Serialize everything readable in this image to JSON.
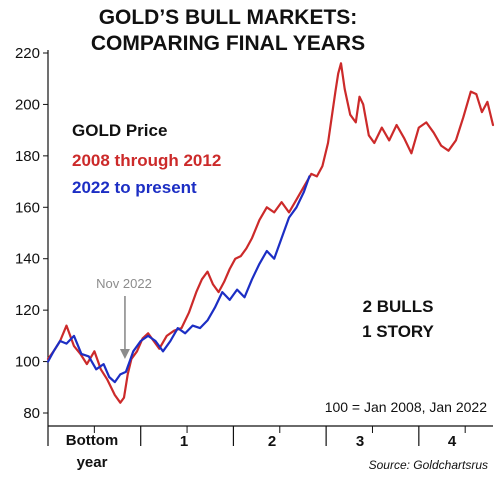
{
  "chart_data": {
    "type": "line",
    "title": [
      "GOLD’S BULL MARKETS:",
      "COMPARING FINAL YEARS"
    ],
    "ylim": [
      80,
      220
    ],
    "yticks": [
      80,
      100,
      120,
      140,
      160,
      180,
      200,
      220
    ],
    "x_unit": "years from bottom",
    "xlim": [
      0,
      4.8
    ],
    "period_labels": [
      "Bottom",
      "year",
      "1",
      "2",
      "3",
      "4"
    ],
    "legend": {
      "heading": "GOLD Price",
      "entries": [
        "2008 through 2012",
        "2022 to present"
      ]
    },
    "series": [
      {
        "name": "2008 through 2012",
        "color": "#cc2a2a",
        "x": [
          0,
          0.06,
          0.13,
          0.2,
          0.28,
          0.35,
          0.42,
          0.5,
          0.57,
          0.64,
          0.72,
          0.78,
          0.82,
          0.86,
          0.9,
          0.96,
          1.02,
          1.08,
          1.14,
          1.2,
          1.28,
          1.36,
          1.44,
          1.52,
          1.6,
          1.66,
          1.72,
          1.78,
          1.84,
          1.9,
          1.96,
          2.02,
          2.08,
          2.14,
          2.2,
          2.28,
          2.36,
          2.44,
          2.52,
          2.6,
          2.68,
          2.76,
          2.84,
          2.9,
          2.96,
          3.02,
          3.06,
          3.1,
          3.13,
          3.16,
          3.2,
          3.26,
          3.32,
          3.36,
          3.4,
          3.46,
          3.52,
          3.6,
          3.68,
          3.76,
          3.84,
          3.92,
          4.0,
          4.08,
          4.16,
          4.24,
          4.32,
          4.4,
          4.48,
          4.56,
          4.62,
          4.68,
          4.74,
          4.8
        ],
        "y": [
          101,
          104,
          108,
          114,
          106,
          103,
          99,
          104,
          97,
          93,
          87,
          84,
          86,
          95,
          101,
          104,
          109,
          111,
          108,
          105,
          110,
          112,
          113,
          119,
          127,
          132,
          135,
          130,
          127,
          131,
          136,
          140,
          141,
          144,
          148,
          155,
          160,
          158,
          162,
          158,
          163,
          168,
          173,
          172,
          176,
          185,
          195,
          205,
          212,
          216,
          206,
          196,
          193,
          203,
          200,
          188,
          185,
          191,
          186,
          192,
          187,
          181,
          191,
          193,
          189,
          184,
          182,
          186,
          195,
          205,
          204,
          197,
          201,
          192
        ]
      },
      {
        "name": "2022 to present",
        "color": "#1c2ec4",
        "x": [
          0,
          0.06,
          0.13,
          0.2,
          0.28,
          0.36,
          0.44,
          0.52,
          0.6,
          0.66,
          0.72,
          0.78,
          0.84,
          0.92,
          1.0,
          1.08,
          1.16,
          1.24,
          1.32,
          1.4,
          1.48,
          1.56,
          1.64,
          1.72,
          1.8,
          1.88,
          1.96,
          2.04,
          2.12,
          2.2,
          2.28,
          2.36,
          2.44,
          2.52,
          2.6,
          2.68,
          2.76,
          2.82
        ],
        "y": [
          100,
          104,
          108,
          107,
          110,
          103,
          102,
          97,
          99,
          94,
          92,
          95,
          96,
          104,
          108,
          110,
          108,
          104,
          108,
          113,
          111,
          114,
          113,
          116,
          121,
          127,
          124,
          128,
          125,
          132,
          138,
          143,
          140,
          148,
          156,
          160,
          166,
          172
        ]
      }
    ],
    "callout": {
      "text": "Nov 2022",
      "x": 0.83,
      "y": 101
    },
    "annotation": [
      "2 BULLS",
      "1 STORY"
    ],
    "note": "100 = Jan 2008, Jan 2022",
    "source": "Source: Goldchartsrus"
  }
}
